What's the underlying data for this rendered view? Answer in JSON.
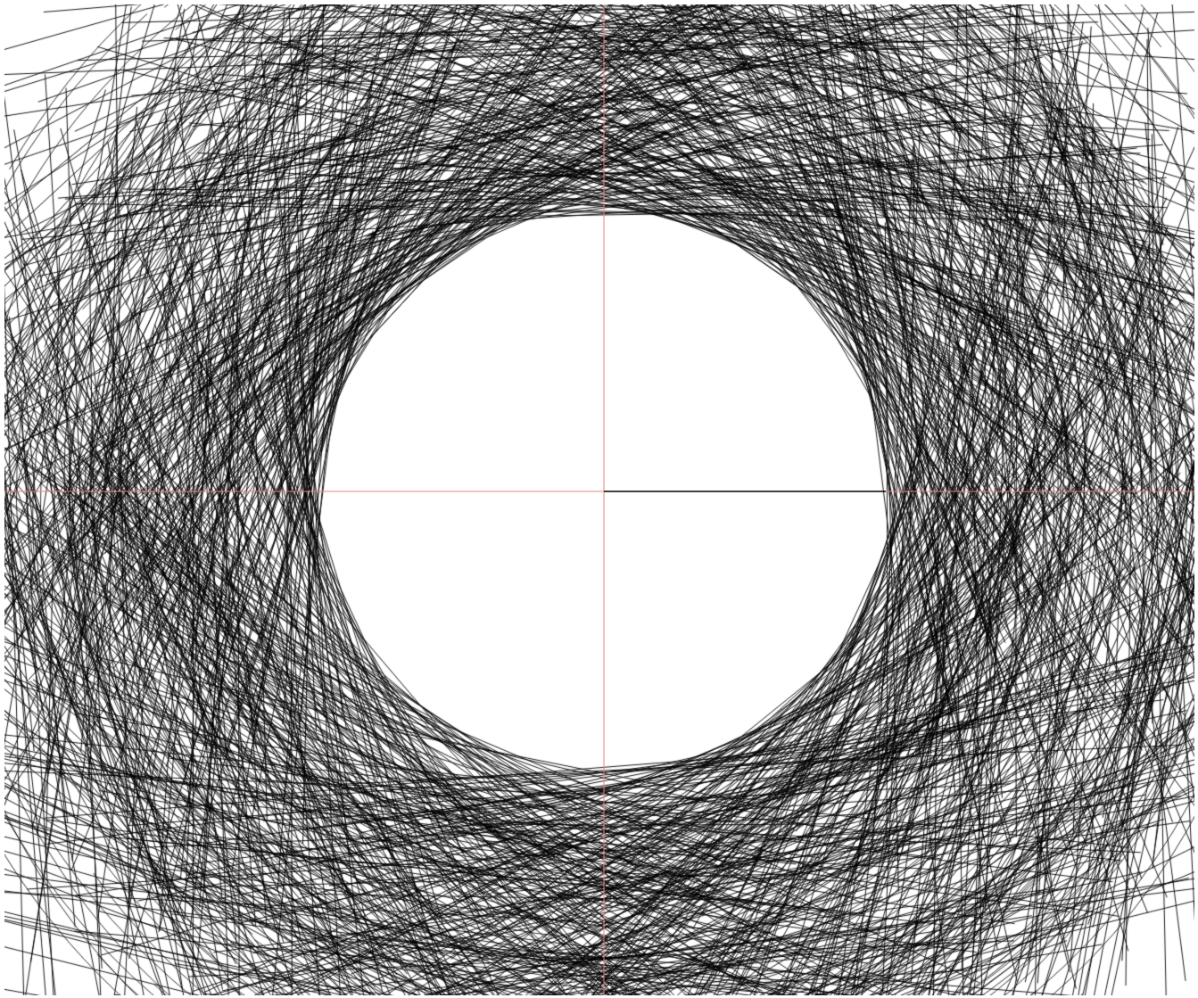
{
  "colors": {
    "background": "#ffffff",
    "chord_stroke": "#000000",
    "axis_line": "#e88080",
    "radius_marker": "#000000"
  },
  "diagram": {
    "kind": "tangent-chord envelope",
    "segment_count": 1400,
    "inner_clear_region": "ellipse",
    "axes_visible": true,
    "radius_marker_visible": true,
    "radius_marker_direction": "right"
  }
}
